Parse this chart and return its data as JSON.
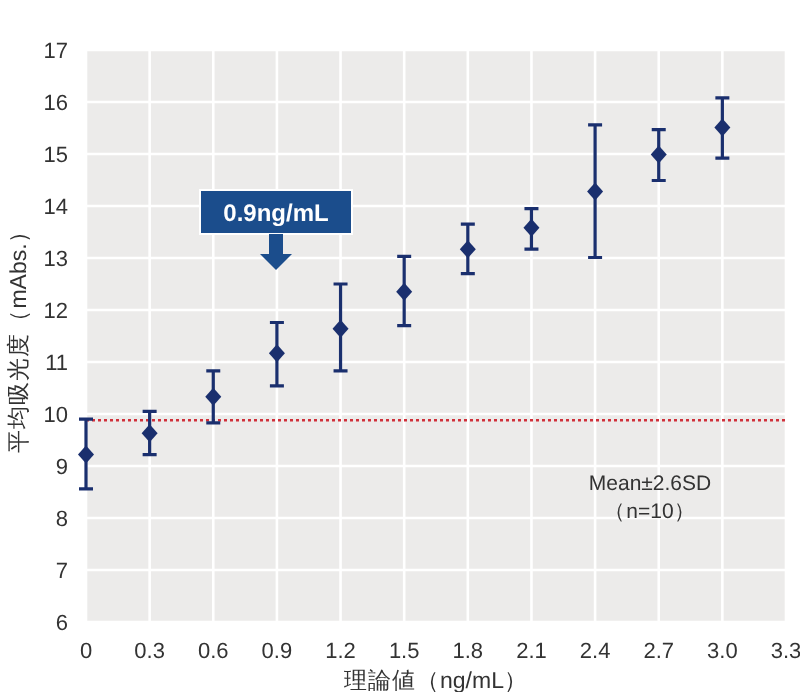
{
  "chart_data": {
    "type": "scatter",
    "xlabel": "理論値（ng/mL）",
    "ylabel": "平均吸光度（mAbs.）",
    "x": [
      0,
      0.3,
      0.6,
      0.9,
      1.2,
      1.5,
      1.8,
      2.1,
      2.4,
      2.7,
      3.0
    ],
    "series": [
      {
        "color": "#1a2f6e",
        "values": [
          9.22,
          9.63,
          10.33,
          11.17,
          11.64,
          12.35,
          13.17,
          13.58,
          14.28,
          14.99,
          15.51
        ],
        "errors": [
          [
            8.56,
            9.9
          ],
          [
            9.22,
            10.05
          ],
          [
            9.83,
            10.83
          ],
          [
            10.54,
            11.76
          ],
          [
            10.83,
            12.5
          ],
          [
            11.7,
            13.03
          ],
          [
            12.7,
            13.65
          ],
          [
            13.17,
            13.95
          ],
          [
            13.01,
            15.56
          ],
          [
            14.49,
            15.47
          ],
          [
            14.92,
            16.08
          ]
        ]
      }
    ],
    "marker": "diamond",
    "grid": true,
    "xlim": [
      0,
      3.3
    ],
    "xticks": [
      0,
      0.3,
      0.6,
      0.9,
      1.2,
      1.5,
      1.8,
      2.1,
      2.4,
      2.7,
      {
        "value": 3.0,
        "label": "3.0"
      },
      3.3
    ],
    "ylim": [
      6,
      17
    ],
    "yticks": [
      6,
      7,
      8,
      9,
      10,
      11,
      12,
      13,
      14,
      15,
      16,
      17
    ],
    "ref_lines": [
      {
        "axis": "y",
        "value": 9.88,
        "label": "Mean±2.6SD\n（n=10）",
        "color": "#d0303a",
        "line_style": "dotted"
      }
    ],
    "annotations": [
      "0.9ng/mL"
    ]
  }
}
